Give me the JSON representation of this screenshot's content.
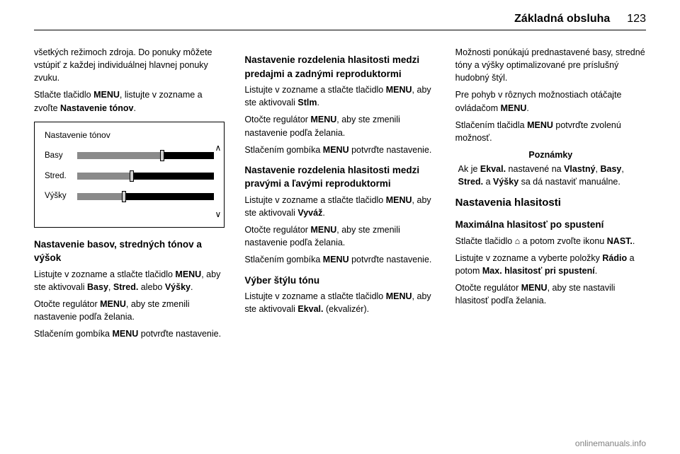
{
  "header": {
    "title": "Základná obsluha",
    "page_number": "123"
  },
  "col1": {
    "p1": "všetkých režimoch zdroja. Do ponuky môžete vstúpiť z každej individuálnej hlavnej ponuky zvuku.",
    "p2_a": "Stlačte tlačidlo ",
    "p2_b": "MENU",
    "p2_c": ", listujte v zozname a zvoľte ",
    "p2_d": "Nastavenie tónov",
    "p2_e": ".",
    "h3": "Nastavenie basov, stredných tónov a výšok",
    "p3_a": "Listujte v zozname a stlačte tlačidlo ",
    "p3_b": "MENU",
    "p3_c": ", aby ste aktivovali ",
    "p3_d": "Basy",
    "p3_e": ", ",
    "p3_f": "Stred.",
    "p3_g": " alebo ",
    "p3_h": "Výšky",
    "p3_i": ".",
    "p4_a": "Otočte regulátor ",
    "p4_b": "MENU",
    "p4_c": ", aby ste zmenili nastavenie podľa želania.",
    "p5_a": "Stlačením gombíka ",
    "p5_b": "MENU",
    "p5_c": " potvrďte nastavenie."
  },
  "figure": {
    "title": "Nastavenie tónov",
    "rows": [
      {
        "label": "Basy",
        "fill_pct": 62,
        "thumb_pct": 62
      },
      {
        "label": "Stred.",
        "fill_pct": 40,
        "thumb_pct": 40
      },
      {
        "label": "Výšky",
        "fill_pct": 34,
        "thumb_pct": 34
      }
    ],
    "track_color": "#000000",
    "fill_color": "#8a8a8a",
    "thumb_color": "#d0d0d0"
  },
  "col2": {
    "h3a": "Nastavenie rozdelenia hlasitosti medzi predajmi a zadnými reproduktormi",
    "p1_a": "Listujte v zozname a stlačte tlačidlo ",
    "p1_b": "MENU",
    "p1_c": ", aby ste aktivovali ",
    "p1_d": "Stlm",
    "p1_e": ".",
    "p2_a": "Otočte regulátor ",
    "p2_b": "MENU",
    "p2_c": ", aby ste zmenili nastavenie podľa želania.",
    "p3_a": "Stlačením gombíka ",
    "p3_b": "MENU",
    "p3_c": " potvrďte nastavenie.",
    "h3b": "Nastavenie rozdelenia hlasitosti medzi pravými a ľavými reproduktormi",
    "p4_a": "Listujte v zozname a stlačte tlačidlo ",
    "p4_b": "MENU",
    "p4_c": ", aby ste aktivovali ",
    "p4_d": "Vyváž",
    "p4_e": ".",
    "p5_a": "Otočte regulátor ",
    "p5_b": "MENU",
    "p5_c": ", aby ste zmenili nastavenie podľa želania.",
    "p6_a": "Stlačením gombíka ",
    "p6_b": "MENU",
    "p6_c": " potvrďte nastavenie.",
    "h3c": "Výber štýlu tónu",
    "p7_a": "Listujte v zozname a stlačte tlačidlo ",
    "p7_b": "MENU",
    "p7_c": ", aby ste aktivovali ",
    "p7_d": "Ekval.",
    "p7_e": " (ekvalizér)."
  },
  "col3": {
    "p1": "Možnosti ponúkajú prednastavené basy, stredné tóny a výšky optimalizované pre príslušný hudobný štýl.",
    "p2_a": "Pre pohyb v rôznych možnostiach otáčajte ovládačom ",
    "p2_b": "MENU",
    "p2_c": ".",
    "p3_a": "Stlačením tlačidla ",
    "p3_b": "MENU",
    "p3_c": " potvrďte zvolenú možnosť.",
    "note_title": "Poznámky",
    "note_a": "Ak je ",
    "note_b": "Ekval.",
    "note_c": " nastavené na ",
    "note_d": "Vlastný",
    "note_e": ", ",
    "note_f": "Basy",
    "note_g": ", ",
    "note_h": "Stred.",
    "note_i": " a ",
    "note_j": "Výšky",
    "note_k": " sa dá nastaviť manuálne.",
    "h2": "Nastavenia hlasitosti",
    "h3": "Maximálna hlasitosť po spustení",
    "p4_a": "Stlačte tlačidlo ",
    "p4_b": "⌂",
    "p4_c": " a potom zvoľte ikonu ",
    "p4_d": "NAST.",
    "p4_e": ".",
    "p5_a": "Listujte v zozname a vyberte položky ",
    "p5_b": "Rádio",
    "p5_c": " a potom ",
    "p5_d": "Max. hlasitosť pri spustení",
    "p5_e": ".",
    "p6_a": "Otočte regulátor ",
    "p6_b": "MENU",
    "p6_c": ", aby ste nastavili hlasitosť podľa želania."
  },
  "footer": {
    "url": "onlinemanuals.info"
  }
}
